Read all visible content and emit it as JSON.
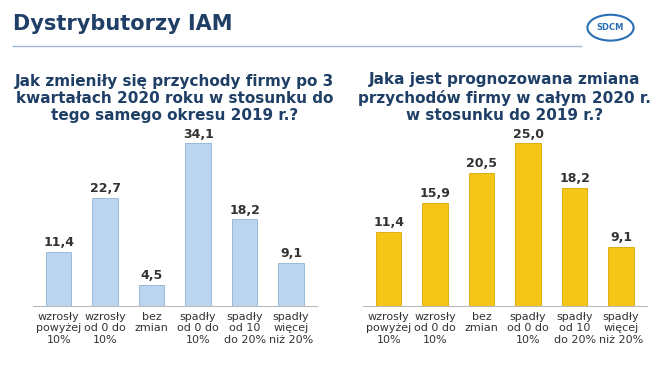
{
  "header": {
    "title": "Dystrybutorzy IAM",
    "logo": "SDCM"
  },
  "chart_data": [
    {
      "type": "bar",
      "title": "Jak zmieniły się przychody firmy po 3 kwartałach 2020 roku w stosunku do tego samego okresu 2019 r.?",
      "categories": [
        "wzrosły\npowyżej\n10%",
        "wzrosły\nod 0 do\n10%",
        "bez\nzmian",
        "spadły\nod 0 do\n10%",
        "spadły\nod 10\ndo 20%",
        "spadły\nwięcej\nniż 20%"
      ],
      "values": [
        11.4,
        22.7,
        4.5,
        34.1,
        18.2,
        9.1
      ],
      "value_labels": [
        "11,4",
        "22,7",
        "4,5",
        "34,1",
        "18,2",
        "9,1"
      ],
      "color": "#bcd5ee",
      "data_labels": true,
      "grid": false,
      "tick_labels": "x"
    },
    {
      "type": "bar",
      "title": "Jaka jest prognozowana zmiana przychodów firmy w całym 2020 r. w stosunku do 2019 r.?",
      "categories": [
        "wzrosły\npowyżej\n10%",
        "wzrosły\nod 0 do\n10%",
        "bez\nzmian",
        "spadły\nod 0 do\n10%",
        "spadły\nod 10\ndo 20%",
        "spadły\nwięcej\nniż 20%"
      ],
      "values": [
        11.4,
        15.9,
        20.5,
        25.0,
        18.2,
        9.1
      ],
      "value_labels": [
        "11,4",
        "15,9",
        "20,5",
        "25,0",
        "18,2",
        "9,1"
      ],
      "color": "#f5c518",
      "data_labels": true,
      "grid": false,
      "tick_labels": "x"
    }
  ]
}
